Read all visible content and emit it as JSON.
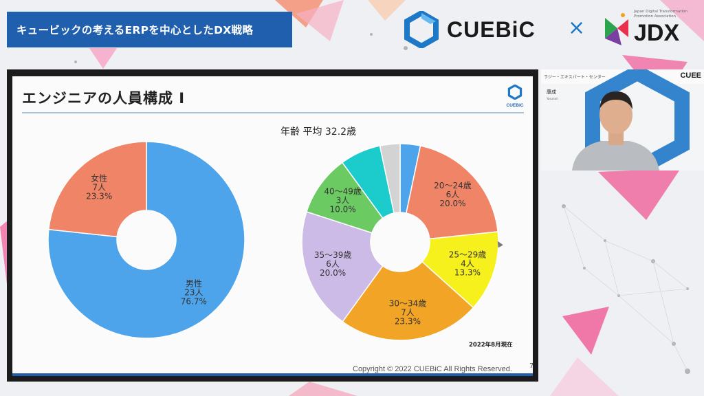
{
  "banner": {
    "title": "キュービックの考えるERPを中心としたDX戦略"
  },
  "brands": {
    "cuebic": "CUEBiC",
    "times": "×",
    "jdx": "JDX",
    "jdx_sub": "Japan Digital Transformation Promotion Association"
  },
  "slide": {
    "title": "エンジニアの人員構成 I",
    "logo_text": "CUEBiC",
    "age_title": "年齢 平均 32.2歳",
    "note": "2022年8月現在",
    "copyright": "Copyright © 2022 CUEBiC All Rights Reserved.",
    "page": "7"
  },
  "camera": {
    "top_left": "ラジー・エキスパート・センター",
    "top_right": "CUEE",
    "name": "康成",
    "sub": "Yasunari"
  },
  "chart_data": [
    {
      "type": "pie",
      "donut": true,
      "title": "",
      "slices": [
        {
          "label": "男性",
          "count": "23人",
          "pct": "76.7%",
          "value": 76.7,
          "color": "#4ea4ea"
        },
        {
          "label": "女性",
          "count": "7人",
          "pct": "23.3%",
          "value": 23.3,
          "color": "#ef8566"
        }
      ]
    },
    {
      "type": "pie",
      "donut": true,
      "title": "年齢 平均 32.2歳",
      "slices": [
        {
          "label": "",
          "count": "",
          "pct": "",
          "value": 3.3,
          "color": "#4ea4ea"
        },
        {
          "label": "20〜24歳",
          "count": "6人",
          "pct": "20.0%",
          "value": 20.0,
          "color": "#ef8566"
        },
        {
          "label": "25〜29歳",
          "count": "4人",
          "pct": "13.3%",
          "value": 13.3,
          "color": "#f6f01c"
        },
        {
          "label": "30〜34歳",
          "count": "7人",
          "pct": "23.3%",
          "value": 23.3,
          "color": "#f2a427"
        },
        {
          "label": "35〜39歳",
          "count": "6人",
          "pct": "20.0%",
          "value": 20.0,
          "color": "#cdbbe7"
        },
        {
          "label": "40〜49歳",
          "count": "3人",
          "pct": "10.0%",
          "value": 10.0,
          "color": "#6cca63"
        },
        {
          "label": "",
          "count": "",
          "pct": "",
          "value": 6.7,
          "color": "#1ccbcb"
        },
        {
          "label": "",
          "count": "",
          "pct": "",
          "value": 3.3,
          "color": "#d3d3d3"
        }
      ]
    }
  ]
}
